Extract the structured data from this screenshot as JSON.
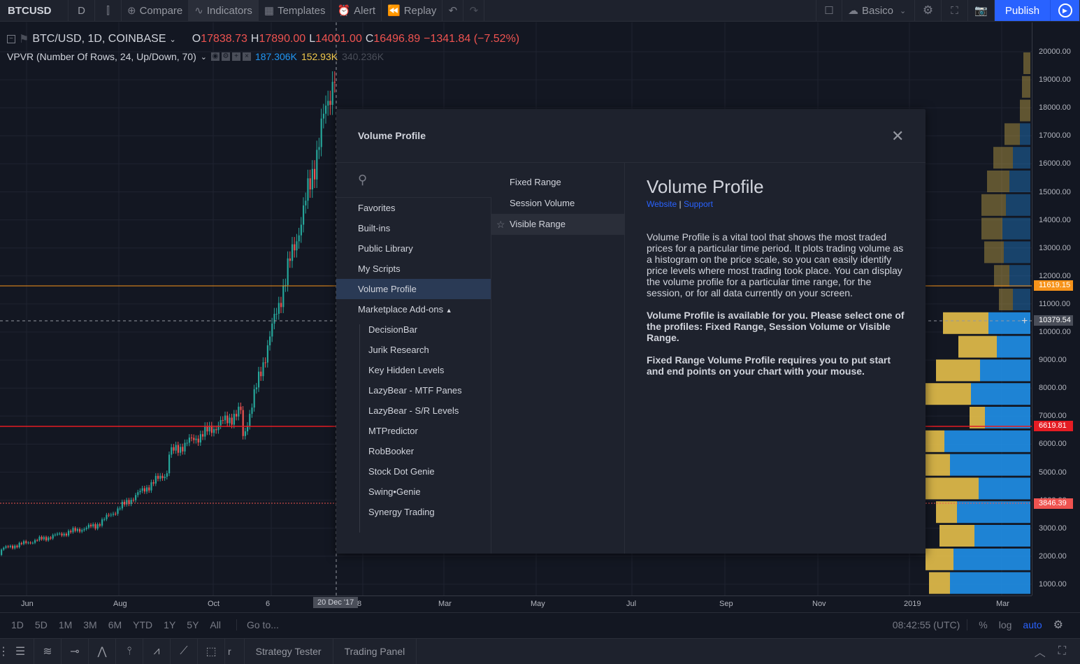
{
  "topbar": {
    "symbol": "BTCUSD",
    "interval": "D",
    "compare": "Compare",
    "indicators": "Indicators",
    "templates": "Templates",
    "alert": "Alert",
    "replay": "Replay",
    "layout": "Basico",
    "publish": "Publish"
  },
  "legend": {
    "pair": "BTC/USD, 1D, COINBASE",
    "o_label": "O",
    "o_value": "17838.73",
    "h_label": "H",
    "h_value": "17890.00",
    "l_label": "L",
    "l_value": "14001.00",
    "c_label": "C",
    "c_value": "16496.89",
    "change": "−1341.84 (−7.52%)",
    "indicator": "VPVR (Number Of Rows, 24, Up/Down, 70)",
    "vol_up": "187.306K",
    "vol_down": "152.93K",
    "vol_total": "340.236K"
  },
  "price_axis": {
    "labels": [
      "20000.00",
      "19000.00",
      "18000.00",
      "17000.00",
      "16000.00",
      "15000.00",
      "14000.00",
      "13000.00",
      "12000.00",
      "11000.00",
      "10000.00",
      "9000.00",
      "8000.00",
      "7000.00",
      "6000.00",
      "5000.00",
      "4000.00",
      "3000.00",
      "2000.00",
      "1000.00"
    ],
    "tags": [
      {
        "text": "11619.15",
        "color": "#f7931a"
      },
      {
        "text": "10379.54",
        "color": "#4a4e59"
      },
      {
        "text": "6619.81",
        "color": "#e51c23"
      },
      {
        "text": "3846.39",
        "color": "#ef5350"
      }
    ]
  },
  "time_axis": {
    "labels": [
      "Jun",
      "Aug",
      "Oct",
      "6",
      "8",
      "Mar",
      "May",
      "Jul",
      "Sep",
      "Nov",
      "2019",
      "Mar"
    ],
    "crosshair_date": "20 Dec '17"
  },
  "rangebar": {
    "ranges": [
      "1D",
      "5D",
      "1M",
      "3M",
      "6M",
      "YTD",
      "1Y",
      "5Y",
      "All"
    ],
    "goto": "Go to...",
    "clock": "08:42:55 (UTC)",
    "pct": "%",
    "log": "log",
    "auto": "auto"
  },
  "bottombar": {
    "tabs": [
      "Strategy Tester",
      "Trading Panel"
    ],
    "partial": "r"
  },
  "dialog": {
    "title": "Volume Profile",
    "search_placeholder": "",
    "categories": [
      "Favorites",
      "Built-ins",
      "Public Library",
      "My Scripts",
      "Volume Profile",
      "Marketplace Add-ons"
    ],
    "marketplace": [
      "DecisionBar",
      "Jurik Research",
      "Key Hidden Levels",
      "LazyBear - MTF Panes",
      "LazyBear - S/R Levels",
      "MTPredictor",
      "RobBooker",
      "Stock Dot Genie",
      "Swing•Genie",
      "Synergy Trading"
    ],
    "items": [
      "Fixed Range",
      "Session Volume",
      "Visible Range"
    ],
    "desc_title": "Volume Profile",
    "link_website": "Website",
    "link_sep": "|",
    "link_support": "Support",
    "p1": "Volume Profile is a vital tool that shows the most traded prices for a particular time period. It plots trading volume as a histogram on the price scale, so you can easily identify price levels where most trading took place. You can display the volume profile for a particular time range, for the session, or for all data currently on your screen.",
    "p2": "Volume Profile is available for you. Please select one of the profiles: Fixed Range, Session Volume or Visible Range.",
    "p3": "Fixed Range Volume Profile requires you to put start and end points on your chart with your mouse."
  },
  "colors": {
    "up": "#26a69a",
    "down": "#ef5350",
    "vol_up": "#2196f3",
    "vol_down": "#f2c94c",
    "accent": "#2962ff"
  }
}
